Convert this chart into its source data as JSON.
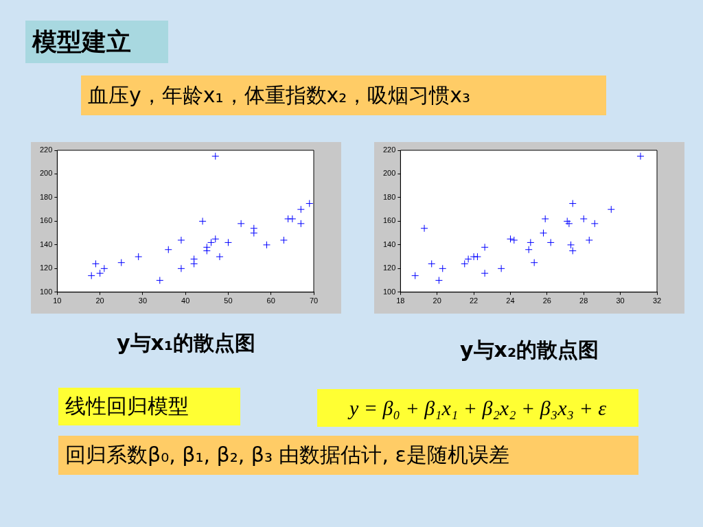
{
  "chart_data": [
    {
      "type": "other",
      "title": "模型建立",
      "annotations": [
        "血压y，年龄x₁，体重指数x₂，吸烟习惯x₃"
      ]
    },
    {
      "type": "scatter",
      "title": "y与x₁的散点图",
      "marker": "cross",
      "grid": false,
      "legend": false,
      "xlim": [
        10,
        70
      ],
      "xticks": [
        10,
        20,
        30,
        40,
        50,
        60,
        70
      ],
      "ylim": [
        100,
        220
      ],
      "yticks": [
        100,
        120,
        140,
        160,
        180,
        200,
        220
      ],
      "series": [
        {
          "color": "#0000ff",
          "x": [
            18,
            19,
            20,
            21,
            25,
            29,
            34,
            36,
            39,
            39,
            44,
            42,
            42,
            45,
            45,
            46,
            47,
            47,
            48,
            50,
            53,
            56,
            56,
            59,
            63,
            64,
            65,
            67,
            67,
            69
          ],
          "values": [
            114,
            124,
            116,
            120,
            125,
            130,
            110,
            136,
            144,
            120,
            160,
            128,
            124,
            135,
            138,
            142,
            145,
            215,
            130,
            142,
            158,
            154,
            150,
            140,
            144,
            162,
            162,
            170,
            158,
            175
          ]
        }
      ]
    },
    {
      "type": "scatter",
      "title": "y与x₂的散点图",
      "marker": "cross",
      "grid": false,
      "legend": false,
      "xlim": [
        18,
        32
      ],
      "xticks": [
        18,
        20,
        22,
        24,
        26,
        28,
        30,
        32
      ],
      "ylim": [
        100,
        220
      ],
      "yticks": [
        100,
        120,
        140,
        160,
        180,
        200,
        220
      ],
      "series": [
        {
          "color": "#0000ff",
          "x": [
            18.8,
            19.3,
            19.7,
            20.1,
            20.3,
            21.5,
            21.7,
            22.0,
            22.2,
            22.6,
            22.6,
            23.5,
            24.0,
            24.2,
            25.0,
            25.1,
            25.3,
            25.8,
            25.9,
            26.2,
            27.1,
            27.2,
            27.4,
            27.3,
            27.4,
            28.0,
            28.3,
            28.6,
            29.5,
            31.1
          ],
          "values": [
            114,
            154,
            124,
            110,
            120,
            124,
            128,
            130,
            130,
            138,
            116,
            120,
            145,
            144,
            136,
            142,
            125,
            150,
            162,
            142,
            160,
            158,
            175,
            140,
            135,
            162,
            144,
            158,
            170,
            215
          ]
        }
      ]
    },
    {
      "type": "other",
      "annotations": [
        "线性回归模型",
        "y = β₀ + β₁x₁ + β₂x₂ + β₃x₃ + ε",
        "回归系数β₀, β₁, β₂, β₃ 由数据估计, ε是随机误差"
      ]
    }
  ]
}
